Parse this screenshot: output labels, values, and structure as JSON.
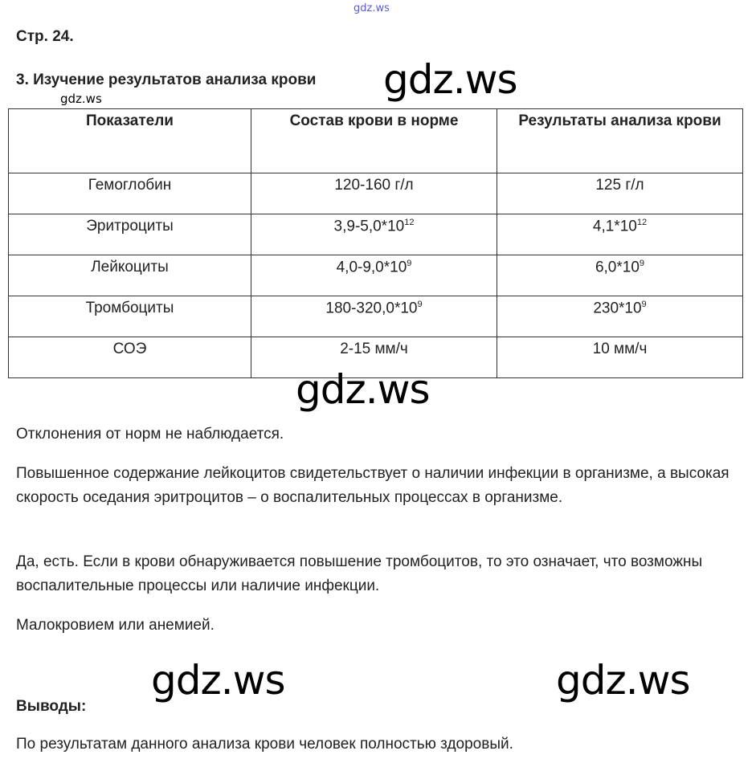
{
  "watermarks": {
    "top": "gdz.ws",
    "header": "gdz.ws",
    "small": "gdz.ws",
    "middle": "gdz.ws",
    "bottom_left": "gdz.ws",
    "bottom_right": "gdz.ws"
  },
  "page_number": "Стр. 24.",
  "section_title": "3. Изучение результатов анализа крови",
  "table": {
    "headers": [
      "Показатели",
      "Состав крови в норме",
      "Результаты анализа крови"
    ],
    "rows": [
      {
        "name": "Гемоглобин",
        "norm": "120-160 г/л",
        "norm_exp": "",
        "result": "125 г/л",
        "result_exp": ""
      },
      {
        "name": "Эритроциты",
        "norm": "3,9-5,0*10",
        "norm_exp": "12",
        "result": "4,1*10",
        "result_exp": "12"
      },
      {
        "name": "Лейкоциты",
        "norm": "4,0-9,0*10",
        "norm_exp": "9",
        "result": "6,0*10",
        "result_exp": "9"
      },
      {
        "name": "Тромбоциты",
        "norm": "180-320,0*10",
        "norm_exp": "9",
        "result": "230*10",
        "result_exp": "9"
      },
      {
        "name": "СОЭ",
        "norm": "2-15 мм/ч",
        "norm_exp": "",
        "result": "10 мм/ч",
        "result_exp": ""
      }
    ]
  },
  "paragraphs": [
    "Отклонения от норм не наблюдается.",
    "Повышенное содержание лейкоцитов свидетельствует о наличии инфекции в организме, а высокая скорость оседания эритроцитов – о воспалительных процессах в организме.",
    "Да, есть. Если в крови обнаруживается повышение тромбоцитов, то это означает, что возможны воспалительные процессы или наличие инфекции.",
    "Малокровием или анемией."
  ],
  "conclusions_label": "Выводы:",
  "conclusion": "По результатам данного анализа крови человек полностью здоровый."
}
